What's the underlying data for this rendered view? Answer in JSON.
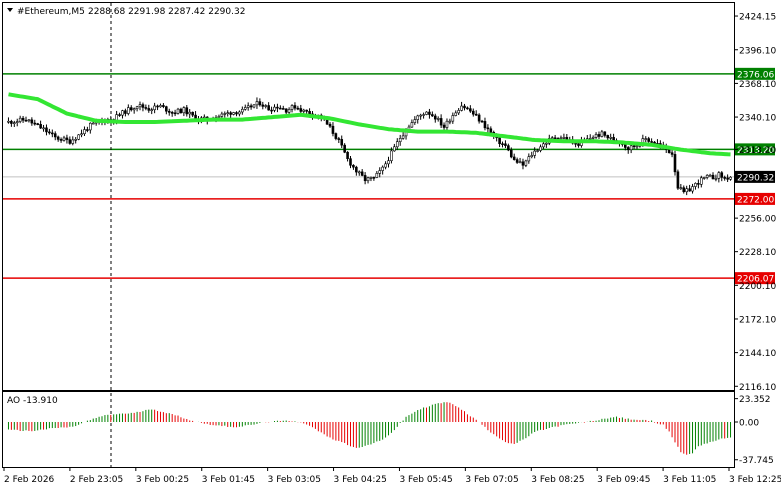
{
  "header": {
    "symbol": "#Ethereum,M5",
    "ohlc": "2288.68 2291.98 2287.42 2290.32"
  },
  "colors": {
    "background": "#ffffff",
    "frame": "#000000",
    "candle": "#000000",
    "moving_average": "#33e633",
    "support_line": "#e60000",
    "resistance_line": "#008000",
    "ao_positive": "#008000",
    "ao_negative": "#e60000",
    "crosshair": "#000000"
  },
  "chart_data": [
    {
      "type": "candlestick",
      "name": "#Ethereum,M5",
      "ylim": [
        2113,
        2435
      ],
      "y_ticks": [
        2424.15,
        2396.1,
        2368.1,
        2340.1,
        2313.2,
        2256.0,
        2228.1,
        2200.1,
        2172.1,
        2144.1,
        2116.1
      ],
      "y_tick_labels": [
        "2424.15",
        "2396.10",
        "2368.10",
        "2340.10",
        "2313.20",
        "2256.00",
        "2228.10",
        "2200.10",
        "2172.10",
        "2144.10",
        "2116.10"
      ],
      "x_labels": [
        "2 Feb 2026",
        "2 Feb 23:05",
        "3 Feb 00:25",
        "3 Feb 01:45",
        "3 Feb 03:05",
        "3 Feb 04:25",
        "3 Feb 05:45",
        "3 Feb 07:05",
        "3 Feb 08:25",
        "3 Feb 09:45",
        "3 Feb 11:05",
        "3 Feb 12:25"
      ],
      "current_price": 2290.32,
      "horizontal_levels": [
        {
          "value": 2376.06,
          "label": "2376.06",
          "color_key": "resistance_line"
        },
        {
          "value": 2313.2,
          "label": "2313.20",
          "color_key": "resistance_line"
        },
        {
          "value": 2272.0,
          "label": "2272.00",
          "color_key": "support_line"
        },
        {
          "value": 2206.07,
          "label": "2206.07",
          "color_key": "support_line"
        }
      ],
      "crosshair_time": "2 Feb 23:05",
      "close_path": [
        [
          0,
          2336
        ],
        [
          6,
          2338
        ],
        [
          12,
          2330
        ],
        [
          16,
          2323
        ],
        [
          21,
          2320
        ],
        [
          24,
          2325
        ],
        [
          28,
          2333
        ],
        [
          32,
          2337
        ],
        [
          36,
          2339
        ],
        [
          40,
          2345
        ],
        [
          44,
          2350
        ],
        [
          48,
          2347
        ],
        [
          52,
          2349
        ],
        [
          56,
          2344
        ],
        [
          60,
          2346
        ],
        [
          64,
          2339
        ],
        [
          68,
          2338
        ],
        [
          72,
          2341
        ],
        [
          76,
          2344
        ],
        [
          80,
          2345
        ],
        [
          83,
          2349
        ],
        [
          86,
          2352
        ],
        [
          89,
          2347
        ],
        [
          92,
          2349
        ],
        [
          95,
          2346
        ],
        [
          98,
          2349
        ],
        [
          101,
          2345
        ],
        [
          104,
          2343
        ],
        [
          107,
          2340
        ],
        [
          110,
          2331
        ],
        [
          113,
          2320
        ],
        [
          116,
          2305
        ],
        [
          119,
          2295
        ],
        [
          122,
          2288
        ],
        [
          125,
          2289
        ],
        [
          128,
          2297
        ],
        [
          131,
          2310
        ],
        [
          134,
          2323
        ],
        [
          137,
          2333
        ],
        [
          140,
          2340
        ],
        [
          143,
          2345
        ],
        [
          146,
          2340
        ],
        [
          149,
          2332
        ],
        [
          152,
          2342
        ],
        [
          155,
          2350
        ],
        [
          158,
          2345
        ],
        [
          161,
          2338
        ],
        [
          164,
          2330
        ],
        [
          167,
          2321
        ],
        [
          170,
          2316
        ],
        [
          173,
          2304
        ],
        [
          176,
          2300
        ],
        [
          179,
          2309
        ],
        [
          182,
          2316
        ],
        [
          185,
          2321
        ],
        [
          188,
          2324
        ],
        [
          191,
          2322
        ],
        [
          194,
          2317
        ],
        [
          197,
          2320
        ],
        [
          200,
          2324
        ],
        [
          203,
          2326
        ],
        [
          206,
          2322
        ],
        [
          209,
          2320
        ],
        [
          212,
          2314
        ],
        [
          215,
          2317
        ],
        [
          218,
          2322
        ],
        [
          221,
          2319
        ],
        [
          224,
          2315
        ],
        [
          227,
          2310
        ],
        [
          229,
          2282
        ],
        [
          231,
          2277
        ],
        [
          233,
          2280
        ],
        [
          235,
          2284
        ],
        [
          237,
          2288
        ],
        [
          239,
          2290
        ],
        [
          241,
          2290
        ],
        [
          243,
          2292
        ],
        [
          245,
          2289
        ],
        [
          247,
          2290
        ]
      ],
      "moving_average_path": [
        [
          0,
          2359
        ],
        [
          10,
          2355
        ],
        [
          20,
          2343
        ],
        [
          30,
          2337
        ],
        [
          40,
          2336
        ],
        [
          50,
          2336
        ],
        [
          60,
          2337
        ],
        [
          70,
          2338
        ],
        [
          80,
          2338
        ],
        [
          90,
          2340
        ],
        [
          100,
          2342
        ],
        [
          110,
          2339
        ],
        [
          120,
          2334
        ],
        [
          130,
          2330
        ],
        [
          140,
          2328
        ],
        [
          150,
          2328
        ],
        [
          160,
          2327
        ],
        [
          170,
          2324
        ],
        [
          180,
          2321
        ],
        [
          190,
          2320
        ],
        [
          200,
          2320
        ],
        [
          210,
          2319
        ],
        [
          220,
          2317
        ],
        [
          230,
          2313
        ],
        [
          240,
          2310
        ],
        [
          247,
          2309
        ]
      ]
    },
    {
      "type": "bar",
      "name": "AO",
      "indicator_label": "AO -13.910",
      "ylim": [
        -45,
        30
      ],
      "y_ticks": [
        23.352,
        0.0,
        -37.745
      ],
      "y_tick_labels": [
        "23.352",
        "0.00",
        "-37.745"
      ],
      "profile": [
        [
          0,
          -8
        ],
        [
          8,
          -9
        ],
        [
          16,
          -6
        ],
        [
          22,
          -5
        ],
        [
          27,
          1
        ],
        [
          32,
          6
        ],
        [
          37,
          8
        ],
        [
          43,
          9
        ],
        [
          49,
          13
        ],
        [
          53,
          10
        ],
        [
          58,
          6
        ],
        [
          63,
          1
        ],
        [
          68,
          -2
        ],
        [
          73,
          -4
        ],
        [
          78,
          -5
        ],
        [
          83,
          -3
        ],
        [
          88,
          0
        ],
        [
          94,
          1
        ],
        [
          98,
          1
        ],
        [
          102,
          -2
        ],
        [
          106,
          -9
        ],
        [
          110,
          -16
        ],
        [
          114,
          -20
        ],
        [
          117,
          -24
        ],
        [
          120,
          -26
        ],
        [
          124,
          -22
        ],
        [
          128,
          -18
        ],
        [
          132,
          -8
        ],
        [
          136,
          5
        ],
        [
          140,
          12
        ],
        [
          146,
          18
        ],
        [
          150,
          20
        ],
        [
          154,
          15
        ],
        [
          157,
          8
        ],
        [
          161,
          0
        ],
        [
          164,
          -8
        ],
        [
          167,
          -14
        ],
        [
          170,
          -20
        ],
        [
          173,
          -22
        ],
        [
          176,
          -18
        ],
        [
          180,
          -10
        ],
        [
          185,
          -6
        ],
        [
          190,
          -3
        ],
        [
          195,
          -1
        ],
        [
          200,
          1
        ],
        [
          205,
          4
        ],
        [
          208,
          5
        ],
        [
          212,
          3
        ],
        [
          216,
          2
        ],
        [
          220,
          1
        ],
        [
          224,
          -3
        ],
        [
          226,
          -10
        ],
        [
          228,
          -20
        ],
        [
          230,
          -30
        ],
        [
          232,
          -33
        ],
        [
          234,
          -31
        ],
        [
          236,
          -24
        ],
        [
          240,
          -20
        ],
        [
          244,
          -17
        ],
        [
          247,
          -15
        ]
      ]
    }
  ]
}
